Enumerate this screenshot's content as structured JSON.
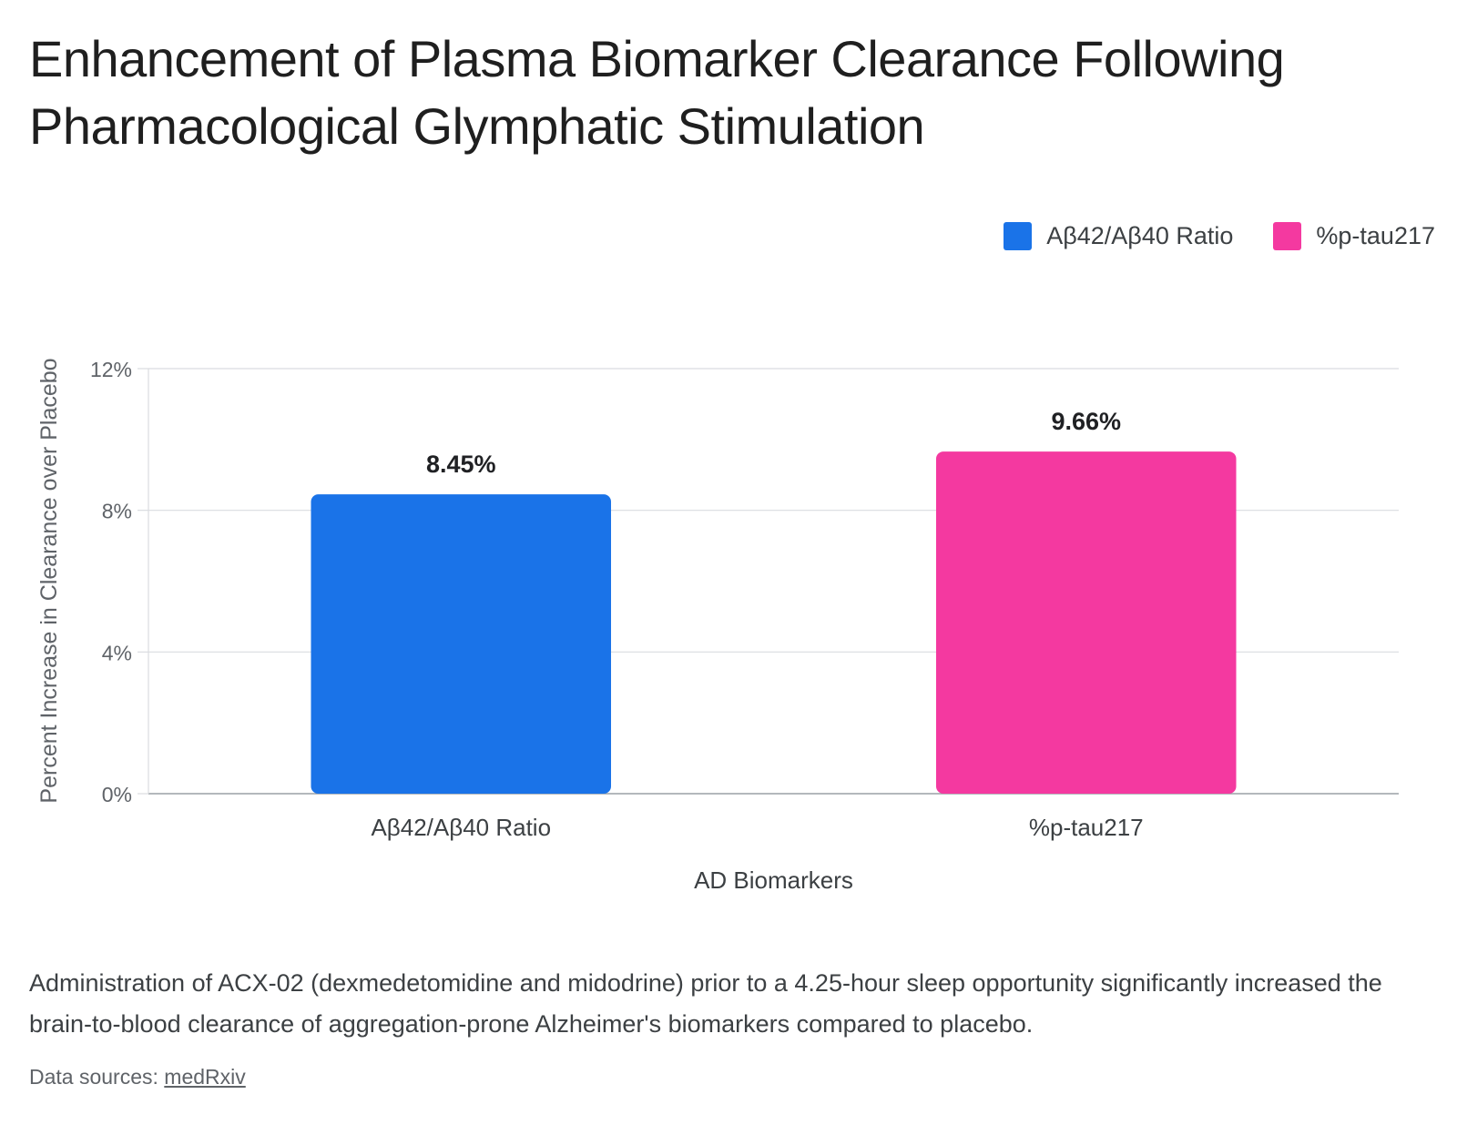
{
  "title": "Enhancement of Plasma Biomarker Clearance Following Pharmacological Glymphatic Stimulation",
  "caption": "Administration of ACX-02 (dexmedetomidine and midodrine) prior to a 4.25-hour sleep opportunity significantly increased the brain-to-blood clearance of aggregation-prone Alzheimer's biomarkers compared to placebo.",
  "source": {
    "prefix": "Data sources: ",
    "link_label": "medRxiv"
  },
  "chart_data": {
    "type": "bar",
    "title": "Enhancement of Plasma Biomarker Clearance Following Pharmacological Glymphatic Stimulation",
    "xlabel": "AD Biomarkers",
    "ylabel": "Percent Increase in Clearance over Placebo",
    "categories": [
      "Aβ42/Aβ40 Ratio",
      "%p-tau217"
    ],
    "values": [
      8.45,
      9.66
    ],
    "data_labels": [
      "8.45%",
      "9.66%"
    ],
    "colors": [
      "#1a73e8",
      "#f439a0"
    ],
    "ylim": [
      0,
      12
    ],
    "yticks": [
      0,
      4,
      8,
      12
    ],
    "ytick_labels": [
      "0%",
      "4%",
      "8%",
      "12%"
    ],
    "grid": true,
    "legend": {
      "position": "top-right",
      "entries": [
        {
          "label": "Aβ42/Aβ40 Ratio",
          "color": "#1a73e8"
        },
        {
          "label": "%p-tau217",
          "color": "#f439a0"
        }
      ]
    }
  }
}
